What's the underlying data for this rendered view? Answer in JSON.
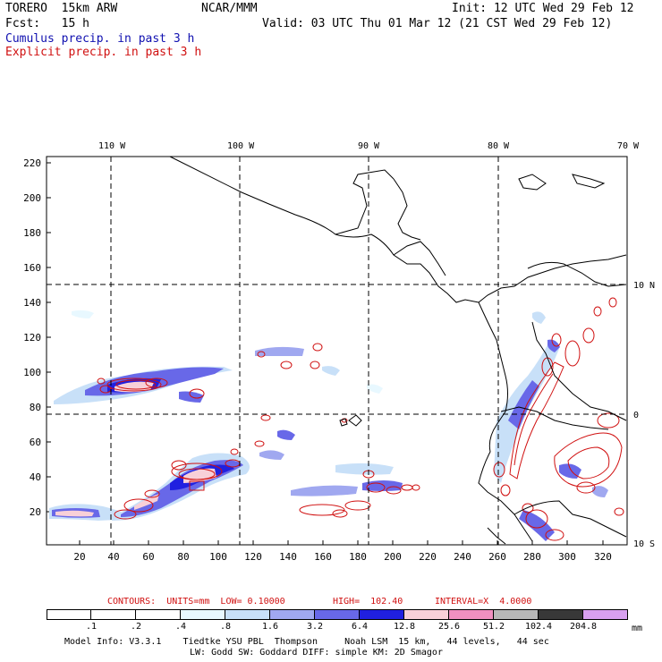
{
  "header": {
    "model": "TORERO  15km ARW",
    "center": "NCAR/MMM",
    "init": "Init: 12 UTC Wed 29 Feb 12",
    "fcst": "Fcst:   15 h",
    "valid": "Valid: 03 UTC Thu 01 Mar 12 (21 CST Wed 29 Feb 12)",
    "line_cumulus": "Cumulus precip. in past 3 h",
    "line_explicit": "Explicit precip. in past 3 h"
  },
  "colors": {
    "cumulus_text": "#1010b0",
    "explicit_text": "#d01010",
    "contour": "#d01010",
    "grid": "#000000"
  },
  "map": {
    "lon_labels": [
      "110 W",
      "100 W",
      "90 W",
      "80 W",
      "70 W"
    ],
    "lat_labels": [
      "10 N",
      "0",
      "10 S"
    ],
    "y_ticks": [
      "220",
      "200",
      "180",
      "160",
      "140",
      "120",
      "100",
      "80",
      "60",
      "40",
      "20"
    ],
    "x_ticks": [
      "20",
      "40",
      "60",
      "80",
      "100",
      "120",
      "140",
      "160",
      "180",
      "200",
      "220",
      "240",
      "260",
      "280",
      "300",
      "320"
    ]
  },
  "contours_line": {
    "label": "CONTOURS:  UNITS=mm  LOW= 0.10000",
    "high": "HIGH=  102.40",
    "interval": "INTERVAL=X  4.0000"
  },
  "legend": {
    "colors": [
      "#ffffff",
      "#ffffff",
      "#ffffff",
      "#e8f8ff",
      "#c8e0f8",
      "#a0a8f0",
      "#6868e8",
      "#2020e0",
      "#f8d0d8",
      "#f090c0",
      "#b8b8b8",
      "#383838",
      "#d8a0f0"
    ],
    "labels": [
      ".1",
      ".2",
      ".4",
      ".8",
      "1.6",
      "3.2",
      "6.4",
      "12.8",
      "25.6",
      "51.2",
      "102.4",
      "204.8"
    ],
    "unit": "mm"
  },
  "footer": {
    "line1": "Model Info: V3.3.1    Tiedtke YSU PBL  Thompson     Noah LSM  15 km,   44 levels,   44 sec",
    "line2": "LW: Godd SW: Goddard DIFF: simple KM: 2D Smagor"
  }
}
